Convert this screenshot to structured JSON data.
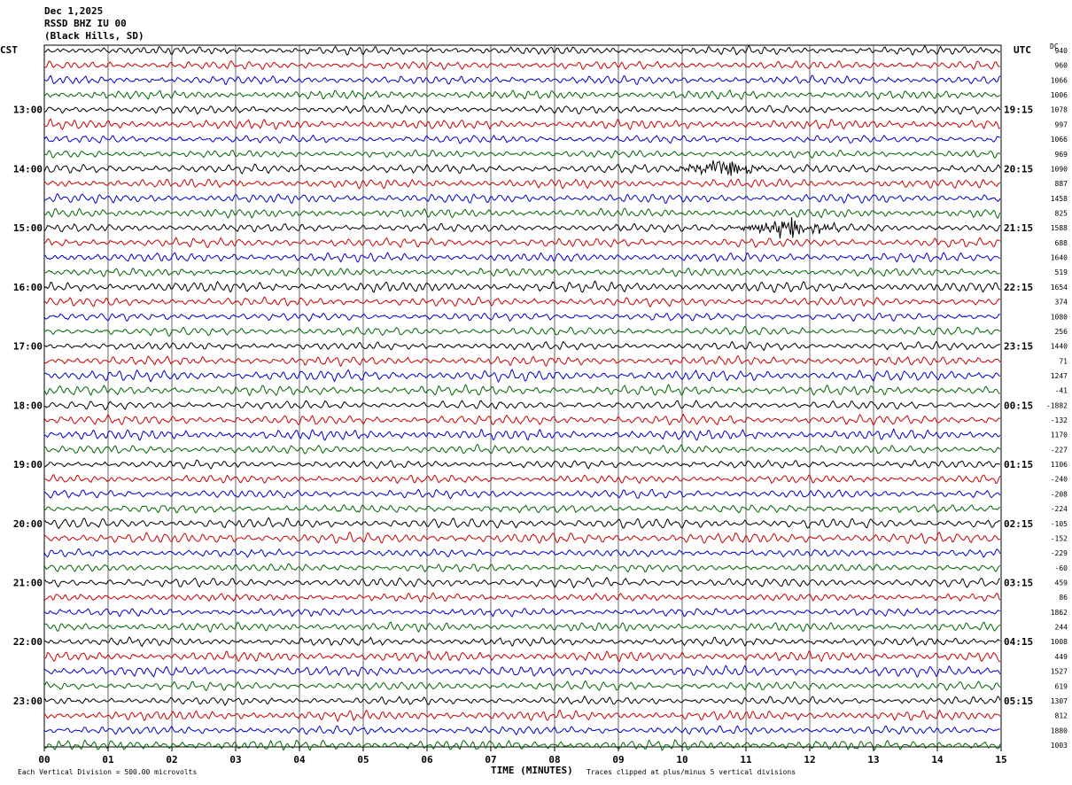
{
  "header": {
    "date": "Dec 1,2025",
    "station": "RSSD BHZ IU 00",
    "location": "(Black Hills, SD)"
  },
  "left_tz": "CST",
  "right_tz": "UTC",
  "dc_label": "DC",
  "footer": {
    "scale": "Each Vertical Division =  500.00 microvolts",
    "clip": "Traces clipped at plus/minus 5 vertical divisions"
  },
  "colors": {
    "trace_cycle": [
      "#000000",
      "#cc0000",
      "#0000cc",
      "#006600"
    ],
    "grid": "#000000"
  },
  "chart_data": {
    "type": "line",
    "title": "RSSD BHZ IU 00",
    "xlabel": "TIME (MINUTES)",
    "xlim": [
      0,
      15
    ],
    "x_ticks": [
      "00",
      "01",
      "02",
      "03",
      "04",
      "05",
      "06",
      "07",
      "08",
      "09",
      "10",
      "11",
      "12",
      "13",
      "14",
      "15"
    ],
    "left_hour_labels": [
      "13:00",
      "14:00",
      "15:00",
      "16:00",
      "17:00",
      "18:00",
      "19:00",
      "20:00",
      "21:00",
      "22:00",
      "23:00"
    ],
    "right_hour_labels": [
      "19:15",
      "20:15",
      "21:15",
      "22:15",
      "23:15",
      "00:15",
      "01:15",
      "02:15",
      "03:15",
      "04:15",
      "05:15"
    ],
    "first_labeled_row": 4,
    "rows_per_hour": 4,
    "row_count": 48,
    "dc_values": [
      "940",
      "960",
      "1066",
      "1006",
      "1078",
      "997",
      "1066",
      "969",
      "1090",
      "887",
      "1458",
      "825",
      "1588",
      "688",
      "1640",
      "519",
      "1654",
      "374",
      "1080",
      "256",
      "1440",
      "71",
      "1247",
      "-41",
      "-1882",
      "-132",
      "1170",
      "-227",
      "1106",
      "-240",
      "-208",
      "-224",
      "-105",
      "-152",
      "-229",
      "-60",
      "459",
      "86",
      "1862",
      "244",
      "1008",
      "449",
      "1527",
      "619",
      "1307",
      "812",
      "1880",
      "1003"
    ],
    "events": [
      {
        "row": 8,
        "start_min": 9.6,
        "end_min": 11.3,
        "amplitude": "high"
      },
      {
        "row": 12,
        "start_min": 10.4,
        "end_min": 12.5,
        "amplitude": "high"
      }
    ],
    "grid": true
  }
}
